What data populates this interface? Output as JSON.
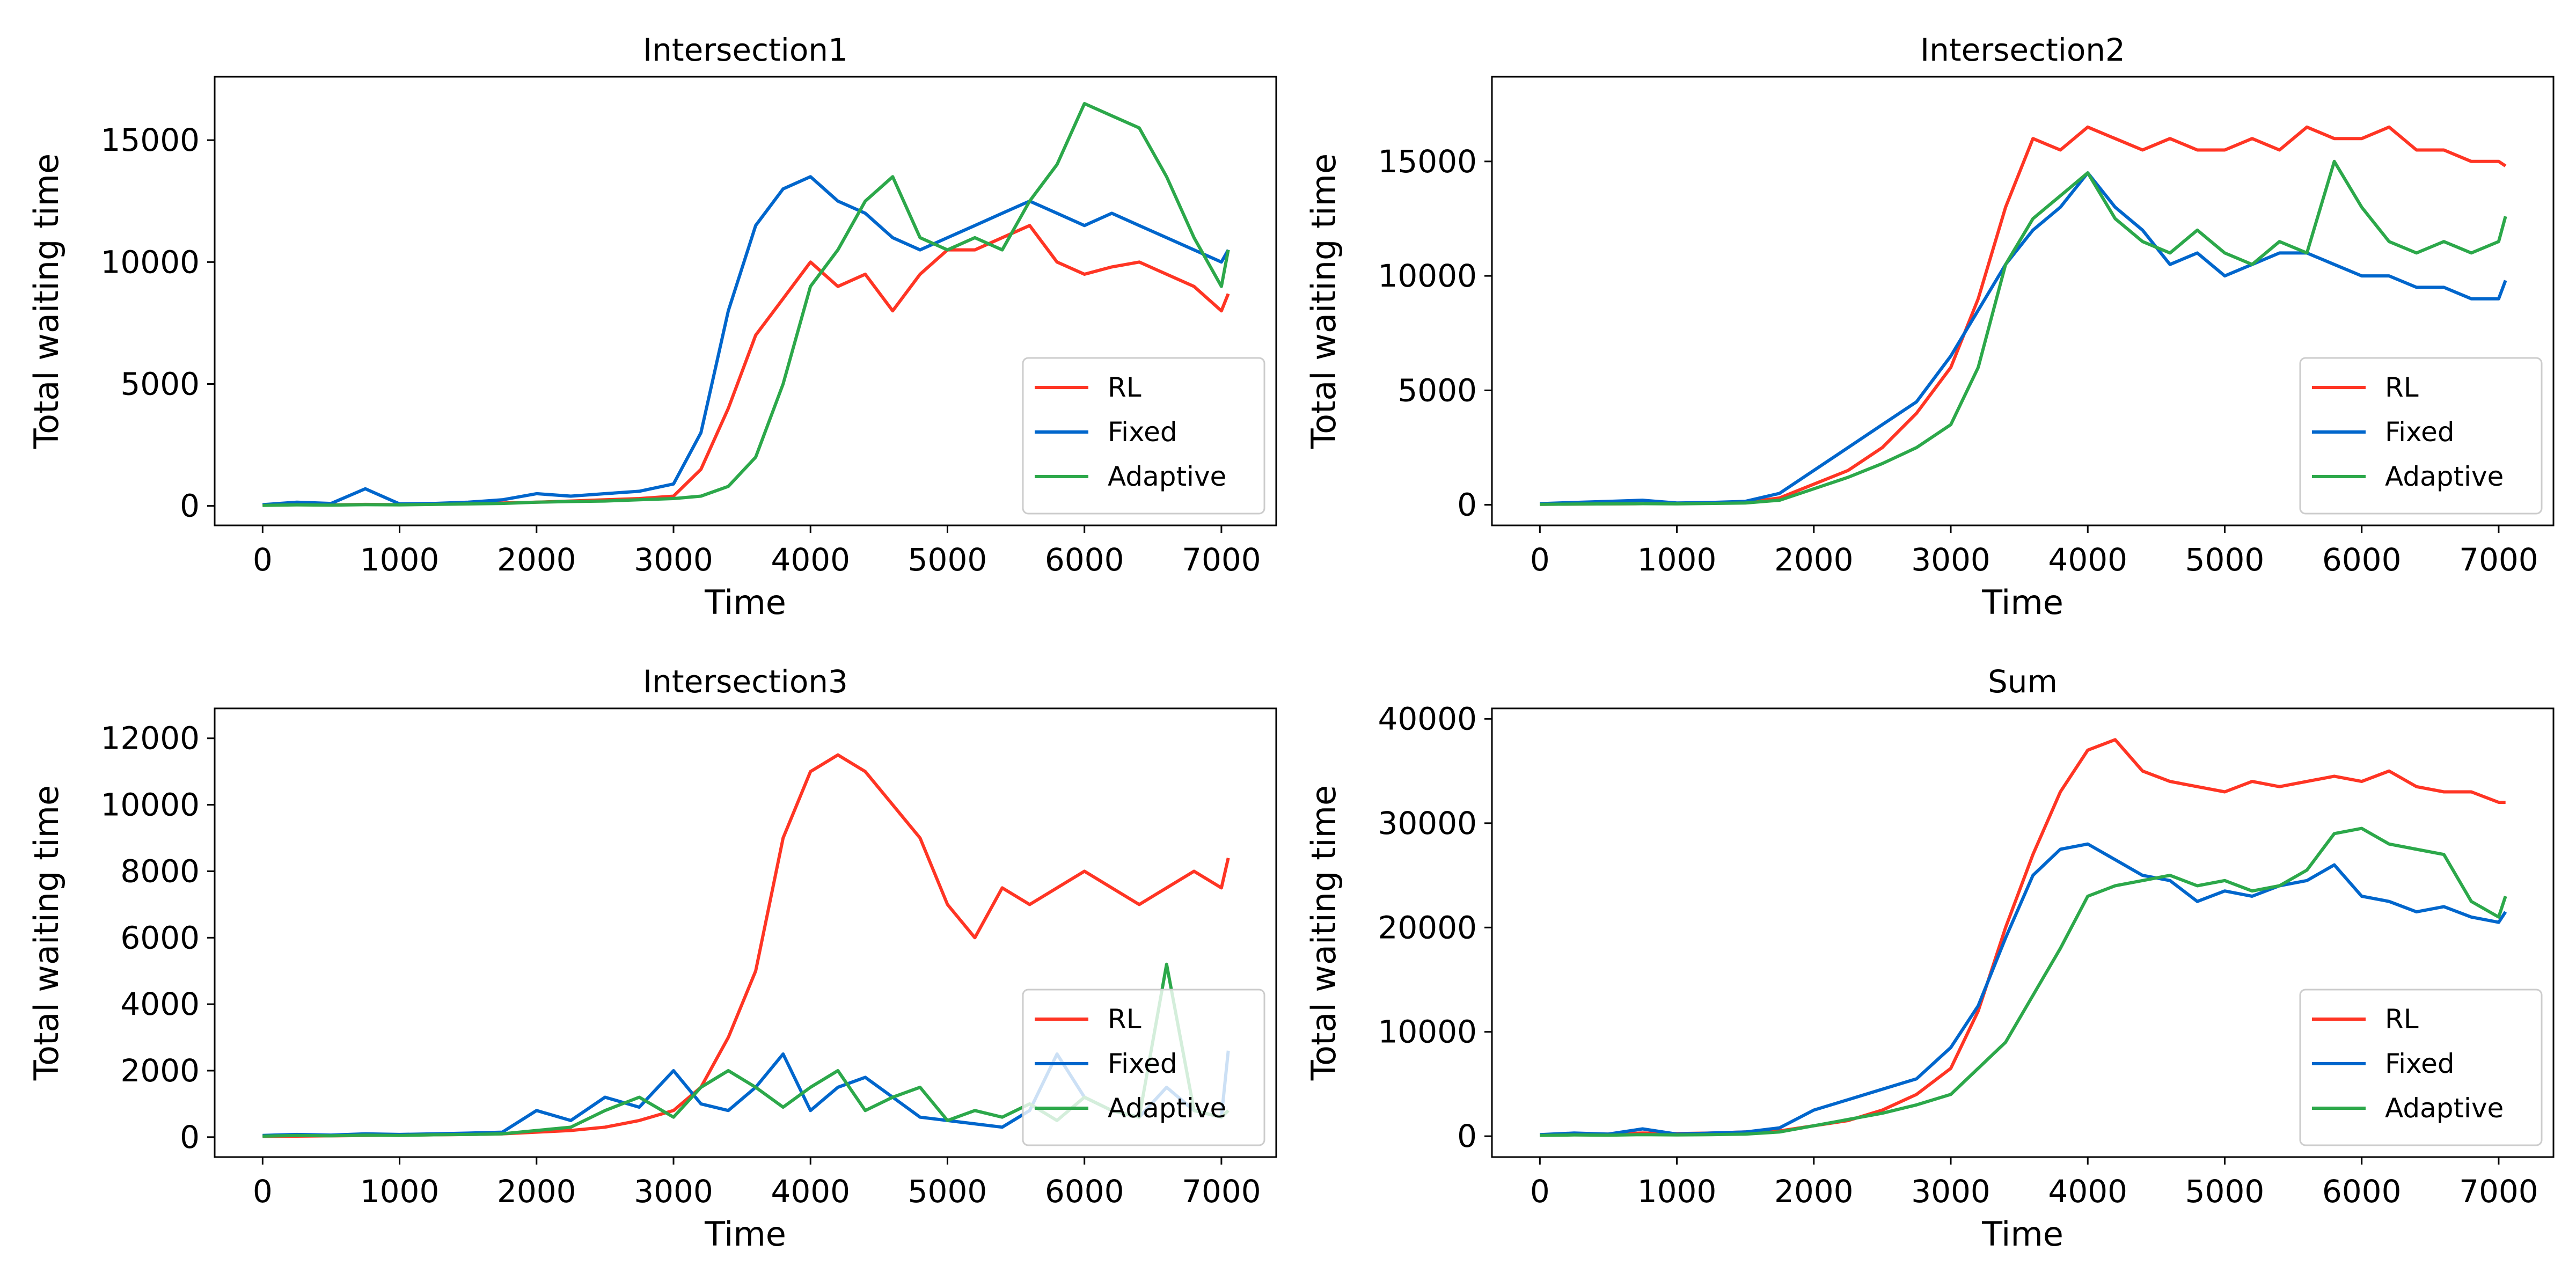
{
  "figure": {
    "colors": {
      "RL": "#ff3524",
      "Fixed": "#0066cc",
      "Adaptive": "#2ca84a"
    }
  },
  "chart_data": [
    {
      "type": "line",
      "title": "Intersection1",
      "xlabel": "Time",
      "ylabel": "Total waiting time",
      "xlim": [
        -350,
        7400
      ],
      "ylim": [
        -800,
        17600
      ],
      "xticks": [
        0,
        1000,
        2000,
        3000,
        4000,
        5000,
        6000,
        7000
      ],
      "yticks": [
        0,
        5000,
        10000,
        15000
      ],
      "tick_labels_x": [
        "0",
        "1000",
        "2000",
        "3000",
        "4000",
        "5000",
        "6000",
        "7000"
      ],
      "tick_labels_y": [
        "0",
        "5000",
        "10000",
        "15000"
      ],
      "legend": {
        "position": "lower-right",
        "entries": [
          "RL",
          "Fixed",
          "Adaptive"
        ]
      },
      "grid": false,
      "x": [
        0,
        250,
        500,
        750,
        1000,
        1250,
        1500,
        1750,
        2000,
        2250,
        2500,
        2750,
        3000,
        3200,
        3400,
        3600,
        3800,
        4000,
        4200,
        4400,
        4600,
        4800,
        5000,
        5200,
        5400,
        5600,
        5800,
        6000,
        6200,
        6400,
        6600,
        6800,
        7000,
        7050
      ],
      "series": [
        {
          "name": "RL",
          "values": [
            30,
            50,
            40,
            60,
            50,
            70,
            90,
            120,
            150,
            200,
            250,
            300,
            400,
            1500,
            4000,
            7000,
            8500,
            10000,
            9000,
            9500,
            8000,
            9500,
            10500,
            10500,
            11000,
            11500,
            10000,
            9500,
            9800,
            10000,
            9500,
            9000,
            8000,
            8700
          ]
        },
        {
          "name": "Fixed",
          "values": [
            50,
            150,
            100,
            700,
            80,
            100,
            150,
            250,
            500,
            400,
            500,
            600,
            900,
            3000,
            8000,
            11500,
            13000,
            13500,
            12500,
            12000,
            11000,
            10500,
            11000,
            11500,
            12000,
            12500,
            12000,
            11500,
            12000,
            11500,
            11000,
            10500,
            10000,
            10500
          ]
        },
        {
          "name": "Adaptive",
          "values": [
            20,
            40,
            30,
            50,
            40,
            60,
            80,
            100,
            150,
            180,
            200,
            250,
            300,
            400,
            800,
            2000,
            5000,
            9000,
            10500,
            12500,
            13500,
            11000,
            10500,
            11000,
            10500,
            12500,
            14000,
            16500,
            16000,
            15500,
            13500,
            11000,
            9000,
            10500
          ]
        }
      ]
    },
    {
      "type": "line",
      "title": "Intersection2",
      "xlabel": "Time",
      "ylabel": "Total waiting time",
      "xlim": [
        -350,
        7400
      ],
      "ylim": [
        -900,
        18700
      ],
      "xticks": [
        0,
        1000,
        2000,
        3000,
        4000,
        5000,
        6000,
        7000
      ],
      "yticks": [
        0,
        5000,
        10000,
        15000
      ],
      "tick_labels_x": [
        "0",
        "1000",
        "2000",
        "3000",
        "4000",
        "5000",
        "6000",
        "7000"
      ],
      "tick_labels_y": [
        "0",
        "5000",
        "10000",
        "15000"
      ],
      "legend": {
        "position": "lower-right",
        "entries": [
          "RL",
          "Fixed",
          "Adaptive"
        ]
      },
      "grid": false,
      "x": [
        0,
        250,
        500,
        750,
        1000,
        1250,
        1500,
        1750,
        2000,
        2250,
        2500,
        2750,
        3000,
        3200,
        3400,
        3600,
        3800,
        4000,
        4200,
        4400,
        4600,
        4800,
        5000,
        5200,
        5400,
        5600,
        5800,
        6000,
        6200,
        6400,
        6600,
        6800,
        7000,
        7050
      ],
      "series": [
        {
          "name": "RL",
          "values": [
            20,
            30,
            40,
            50,
            60,
            80,
            100,
            300,
            900,
            1500,
            2500,
            4000,
            6000,
            9000,
            13000,
            16000,
            15500,
            16500,
            16000,
            15500,
            16000,
            15500,
            15500,
            16000,
            15500,
            16500,
            16000,
            16000,
            16500,
            15500,
            15500,
            15000,
            15000,
            14800
          ]
        },
        {
          "name": "Fixed",
          "values": [
            50,
            100,
            150,
            200,
            80,
            100,
            150,
            500,
            1500,
            2500,
            3500,
            4500,
            6500,
            8500,
            10500,
            12000,
            13000,
            14500,
            13000,
            12000,
            10500,
            11000,
            10000,
            10500,
            11000,
            11000,
            10500,
            10000,
            10000,
            9500,
            9500,
            9000,
            9000,
            9800
          ]
        },
        {
          "name": "Adaptive",
          "values": [
            20,
            30,
            40,
            50,
            40,
            60,
            80,
            200,
            700,
            1200,
            1800,
            2500,
            3500,
            6000,
            10500,
            12500,
            13500,
            14500,
            12500,
            11500,
            11000,
            12000,
            11000,
            10500,
            11500,
            11000,
            15000,
            13000,
            11500,
            11000,
            11500,
            11000,
            11500,
            12600
          ]
        }
      ]
    },
    {
      "type": "line",
      "title": "Intersection3",
      "xlabel": "Time",
      "ylabel": "Total waiting time",
      "xlim": [
        -350,
        7400
      ],
      "ylim": [
        -600,
        12900
      ],
      "xticks": [
        0,
        1000,
        2000,
        3000,
        4000,
        5000,
        6000,
        7000
      ],
      "yticks": [
        0,
        2000,
        4000,
        6000,
        8000,
        10000,
        12000
      ],
      "tick_labels_x": [
        "0",
        "1000",
        "2000",
        "3000",
        "4000",
        "5000",
        "6000",
        "7000"
      ],
      "tick_labels_y": [
        "0",
        "2000",
        "4000",
        "6000",
        "8000",
        "10000",
        "12000"
      ],
      "legend": {
        "position": "lower-right",
        "entries": [
          "RL",
          "Fixed",
          "Adaptive"
        ]
      },
      "grid": false,
      "x": [
        0,
        250,
        500,
        750,
        1000,
        1250,
        1500,
        1750,
        2000,
        2250,
        2500,
        2750,
        3000,
        3200,
        3400,
        3600,
        3800,
        4000,
        4200,
        4400,
        4600,
        4800,
        5000,
        5200,
        5400,
        5600,
        5800,
        6000,
        6200,
        6400,
        6600,
        6800,
        7000,
        7050
      ],
      "series": [
        {
          "name": "RL",
          "values": [
            20,
            30,
            40,
            50,
            60,
            70,
            80,
            100,
            150,
            200,
            300,
            500,
            800,
            1500,
            3000,
            5000,
            9000,
            11000,
            11500,
            11000,
            10000,
            9000,
            7000,
            6000,
            7500,
            7000,
            7500,
            8000,
            7500,
            7000,
            7500,
            8000,
            7500,
            8400
          ]
        },
        {
          "name": "Fixed",
          "values": [
            50,
            80,
            60,
            100,
            80,
            100,
            120,
            150,
            800,
            500,
            1200,
            900,
            2000,
            1000,
            800,
            1500,
            2500,
            800,
            1500,
            1800,
            1200,
            600,
            500,
            400,
            300,
            800,
            2500,
            1200,
            800,
            600,
            1500,
            800,
            600,
            2600
          ]
        },
        {
          "name": "Adaptive",
          "values": [
            30,
            50,
            40,
            60,
            50,
            70,
            80,
            100,
            200,
            300,
            800,
            1200,
            600,
            1500,
            2000,
            1500,
            900,
            1500,
            2000,
            800,
            1200,
            1500,
            500,
            800,
            600,
            1000,
            500,
            1200,
            800,
            600,
            5200,
            800,
            600,
            800
          ]
        }
      ]
    },
    {
      "type": "line",
      "title": "Sum",
      "xlabel": "Time",
      "ylabel": "Total waiting time",
      "xlim": [
        -350,
        7400
      ],
      "ylim": [
        -2000,
        41000
      ],
      "xticks": [
        0,
        1000,
        2000,
        3000,
        4000,
        5000,
        6000,
        7000
      ],
      "yticks": [
        0,
        10000,
        20000,
        30000,
        40000
      ],
      "tick_labels_x": [
        "0",
        "1000",
        "2000",
        "3000",
        "4000",
        "5000",
        "6000",
        "7000"
      ],
      "tick_labels_y": [
        "0",
        "10000",
        "20000",
        "30000",
        "40000"
      ],
      "legend": {
        "position": "lower-right",
        "entries": [
          "RL",
          "Fixed",
          "Adaptive"
        ]
      },
      "grid": false,
      "x": [
        0,
        250,
        500,
        750,
        1000,
        1250,
        1500,
        1750,
        2000,
        2250,
        2500,
        2750,
        3000,
        3200,
        3400,
        3600,
        3800,
        4000,
        4200,
        4400,
        4600,
        4800,
        5000,
        5200,
        5400,
        5600,
        5800,
        6000,
        6200,
        6400,
        6600,
        6800,
        7000,
        7050
      ],
      "series": [
        {
          "name": "RL",
          "values": [
            100,
            150,
            200,
            300,
            250,
            300,
            400,
            500,
            1000,
            1500,
            2500,
            4000,
            6500,
            12000,
            20000,
            27000,
            33000,
            37000,
            38000,
            35000,
            34000,
            33500,
            33000,
            34000,
            33500,
            34000,
            34500,
            34000,
            35000,
            33500,
            33000,
            33000,
            32000,
            32000
          ]
        },
        {
          "name": "Fixed",
          "values": [
            150,
            300,
            200,
            700,
            200,
            300,
            400,
            800,
            2500,
            3500,
            4500,
            5500,
            8500,
            12500,
            19000,
            25000,
            27500,
            28000,
            26500,
            25000,
            24500,
            22500,
            23500,
            23000,
            24000,
            24500,
            26000,
            23000,
            22500,
            21500,
            22000,
            21000,
            20500,
            21500
          ]
        },
        {
          "name": "Adaptive",
          "values": [
            80,
            120,
            100,
            150,
            120,
            150,
            200,
            400,
            1000,
            1600,
            2200,
            3000,
            4000,
            6500,
            9000,
            13500,
            18000,
            23000,
            24000,
            24500,
            25000,
            24000,
            24500,
            23500,
            24000,
            25500,
            29000,
            29500,
            28000,
            27500,
            27000,
            22500,
            21000,
            23000
          ]
        }
      ]
    }
  ]
}
